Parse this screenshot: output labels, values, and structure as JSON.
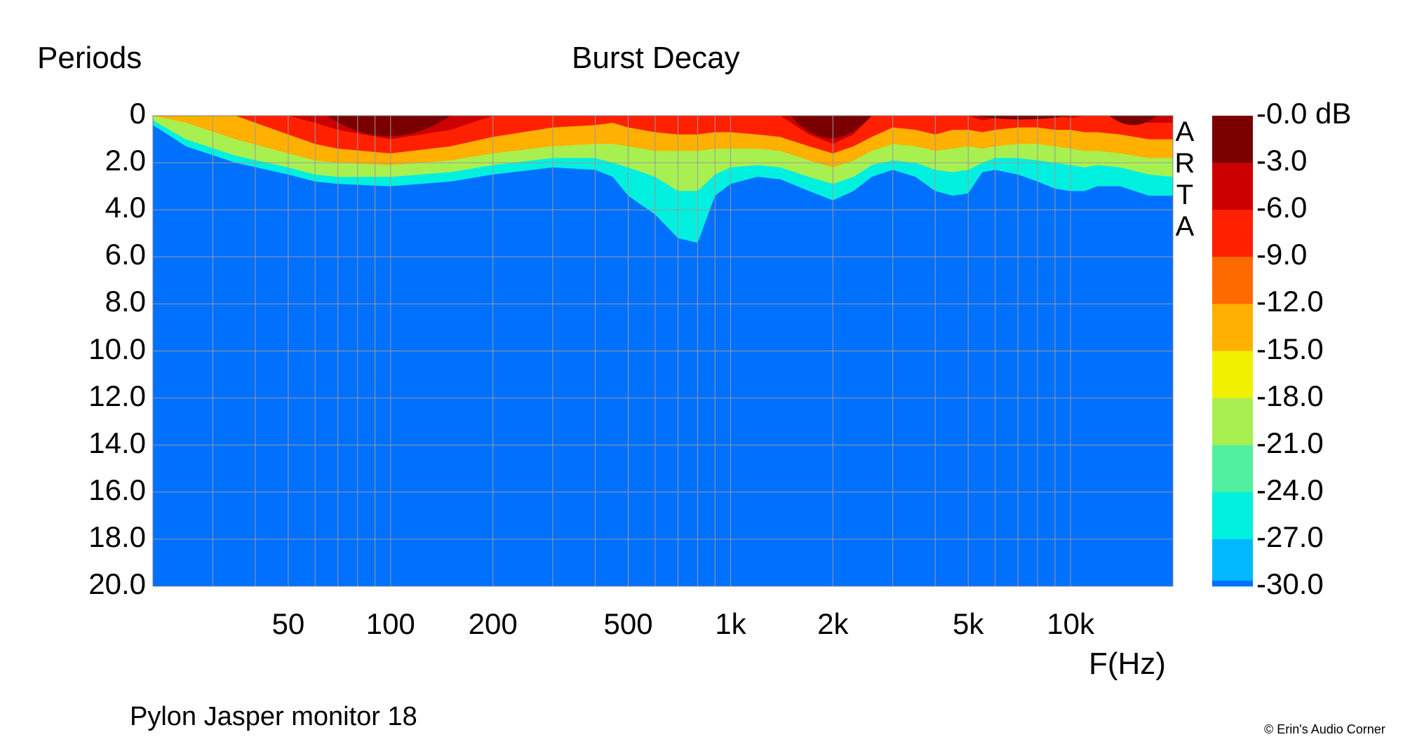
{
  "chart_data": {
    "type": "heatmap",
    "title": "Burst Decay",
    "ylabel": "Periods",
    "xlabel": "F(Hz)",
    "footer": "Pylon Jasper monitor 18",
    "copyright": "© Erin's Audio Corner",
    "brand_letters": [
      "A",
      "R",
      "T",
      "A"
    ],
    "x_scale": "log",
    "xlim": [
      20,
      20000
    ],
    "ylim": [
      0,
      20
    ],
    "y_direction": "down",
    "grid": true,
    "x_ticks": [
      {
        "value": 50,
        "label": "50"
      },
      {
        "value": 100,
        "label": "100"
      },
      {
        "value": 200,
        "label": "200"
      },
      {
        "value": 500,
        "label": "500"
      },
      {
        "value": 1000,
        "label": "1k"
      },
      {
        "value": 2000,
        "label": "2k"
      },
      {
        "value": 5000,
        "label": "5k"
      },
      {
        "value": 10000,
        "label": "10k"
      }
    ],
    "y_ticks": [
      {
        "value": 0,
        "label": "0"
      },
      {
        "value": 2,
        "label": "2.0"
      },
      {
        "value": 4,
        "label": "4.0"
      },
      {
        "value": 6,
        "label": "6.0"
      },
      {
        "value": 8,
        "label": "8.0"
      },
      {
        "value": 10,
        "label": "10.0"
      },
      {
        "value": 12,
        "label": "12.0"
      },
      {
        "value": 14,
        "label": "14.0"
      },
      {
        "value": 16,
        "label": "16.0"
      },
      {
        "value": 18,
        "label": "18.0"
      },
      {
        "value": 20,
        "label": "20.0"
      }
    ],
    "colorbar": {
      "labels": [
        "-0.0 dB",
        "-3.0",
        "-6.0",
        "-9.0",
        "-12.0",
        "-15.0",
        "-18.0",
        "-21.0",
        "-24.0",
        "-27.0",
        "-30.0"
      ],
      "colors": [
        "#7a0000",
        "#cc0000",
        "#ff2000",
        "#ff6a00",
        "#ffb000",
        "#f0f000",
        "#a8f050",
        "#50f0a0",
        "#00f0e0",
        "#00b8ff",
        "#0070ff"
      ],
      "floor_color": "#0070ff"
    },
    "contours": [
      {
        "level_db": -3,
        "freq": [
          20,
          25,
          35,
          50,
          60,
          70,
          100,
          150,
          200,
          300,
          400,
          450,
          500,
          600,
          700,
          800,
          900,
          1000,
          1200,
          1400,
          1700,
          2000,
          2300,
          2600,
          3000,
          3500,
          4000,
          4500,
          5000,
          5500,
          6000,
          7000,
          8000,
          9000,
          10000,
          11000,
          12000,
          14000,
          17000,
          20000
        ],
        "periods": [
          0,
          0,
          0,
          0,
          0.3,
          0.6,
          1,
          0.6,
          0,
          0,
          0,
          0,
          0,
          0,
          0,
          0,
          0,
          0,
          0,
          0,
          0.8,
          1.2,
          0.8,
          0,
          0,
          0,
          0,
          0,
          0,
          0.2,
          0.1,
          0,
          0,
          0,
          0.1,
          0,
          0,
          0,
          0.3,
          0.3
        ]
      },
      {
        "level_db": -6,
        "freq": [
          20,
          25,
          35,
          50,
          60,
          70,
          100,
          150,
          200,
          300,
          400,
          450,
          500,
          600,
          700,
          800,
          900,
          1000,
          1200,
          1400,
          1700,
          2000,
          2300,
          2600,
          3000,
          3500,
          4000,
          4500,
          5000,
          5500,
          6000,
          7000,
          8000,
          9000,
          10000,
          11000,
          12000,
          14000,
          17000,
          20000
        ],
        "periods": [
          0,
          0,
          0,
          0.8,
          1.2,
          1.4,
          1.6,
          1.3,
          0.9,
          0.5,
          0.4,
          0.3,
          0.5,
          0.7,
          0.8,
          0.8,
          0.7,
          0.7,
          0.8,
          0.9,
          1.3,
          1.6,
          1.3,
          0.9,
          0.5,
          0.6,
          0.8,
          0.6,
          0.6,
          0.7,
          0.6,
          0.5,
          0.5,
          0.6,
          0.6,
          0.7,
          0.7,
          0.8,
          1,
          1
        ]
      },
      {
        "level_db": -12,
        "freq": [
          20,
          25,
          35,
          50,
          60,
          70,
          100,
          150,
          200,
          300,
          400,
          450,
          500,
          600,
          700,
          800,
          900,
          1000,
          1200,
          1400,
          1700,
          2000,
          2300,
          2600,
          3000,
          3500,
          4000,
          4500,
          5000,
          5500,
          6000,
          7000,
          8000,
          9000,
          10000,
          11000,
          12000,
          14000,
          17000,
          20000
        ],
        "periods": [
          0,
          0.3,
          1,
          1.6,
          1.9,
          2,
          2.1,
          1.9,
          1.6,
          1.3,
          1.2,
          1.2,
          1.3,
          1.5,
          1.5,
          1.5,
          1.4,
          1.4,
          1.4,
          1.5,
          1.9,
          2.2,
          1.9,
          1.5,
          1.2,
          1.3,
          1.5,
          1.4,
          1.3,
          1.4,
          1.3,
          1.2,
          1.2,
          1.3,
          1.4,
          1.5,
          1.5,
          1.6,
          1.8,
          1.8
        ]
      },
      {
        "level_db": -18,
        "freq": [
          20,
          25,
          35,
          50,
          60,
          70,
          100,
          150,
          200,
          300,
          400,
          450,
          500,
          600,
          700,
          800,
          900,
          1000,
          1200,
          1400,
          1700,
          2000,
          2300,
          2600,
          3000,
          3500,
          4000,
          4500,
          5000,
          5500,
          6000,
          7000,
          8000,
          9000,
          10000,
          11000,
          12000,
          14000,
          17000,
          20000
        ],
        "periods": [
          0.2,
          1,
          1.7,
          2.2,
          2.5,
          2.6,
          2.6,
          2.4,
          2.1,
          1.8,
          1.8,
          2,
          2.2,
          2.6,
          3.2,
          3.2,
          2.5,
          2.2,
          2.1,
          2.2,
          2.6,
          2.9,
          2.6,
          2.1,
          1.9,
          2,
          2.3,
          2.4,
          2.3,
          2,
          1.8,
          1.8,
          1.9,
          2,
          2.1,
          2.2,
          2.1,
          2.2,
          2.5,
          2.6
        ]
      },
      {
        "level_db": -24,
        "freq": [
          20,
          25,
          35,
          50,
          60,
          70,
          100,
          150,
          200,
          300,
          400,
          450,
          500,
          600,
          700,
          800,
          900,
          1000,
          1200,
          1400,
          1700,
          2000,
          2300,
          2600,
          3000,
          3500,
          4000,
          4500,
          5000,
          5500,
          6000,
          7000,
          8000,
          9000,
          10000,
          11000,
          12000,
          14000,
          17000,
          20000
        ],
        "periods": [
          0.4,
          1.3,
          2,
          2.5,
          2.8,
          2.9,
          3,
          2.8,
          2.5,
          2.2,
          2.3,
          2.6,
          3.4,
          4.2,
          5.2,
          5.4,
          3.4,
          2.9,
          2.6,
          2.7,
          3.2,
          3.6,
          3.2,
          2.6,
          2.3,
          2.6,
          3.2,
          3.4,
          3.3,
          2.4,
          2.3,
          2.5,
          2.8,
          3.1,
          3.2,
          3.2,
          3,
          3,
          3.4,
          3.4
        ]
      },
      {
        "level_db": -30,
        "freq": [
          20,
          25,
          35,
          50,
          60,
          70,
          100,
          150,
          200,
          300,
          400,
          450,
          500,
          600,
          700,
          800,
          900,
          1000,
          1200,
          1400,
          1700,
          2000,
          2300,
          2600,
          3000,
          3500,
          4000,
          4500,
          5000,
          5500,
          6000,
          7000,
          8000,
          9000,
          10000,
          11000,
          12000,
          14000,
          17000,
          20000
        ],
        "periods": [
          0.5,
          1.5,
          2.2,
          2.7,
          3,
          3.1,
          3.2,
          3,
          2.7,
          2.4,
          2.5,
          2.8,
          3.6,
          4.6,
          5.8,
          5.7,
          3.6,
          3.1,
          2.8,
          2.9,
          3.4,
          4.3,
          3.6,
          2.8,
          2.5,
          2.8,
          3.5,
          3.6,
          3.5,
          2.6,
          2.5,
          2.7,
          3,
          3.3,
          3.4,
          3.4,
          3.2,
          3.2,
          3.6,
          3.6
        ]
      }
    ],
    "peaks": [
      {
        "level_db": -3,
        "freq_range": [
          65,
          150
        ],
        "periods_max": 1.1
      },
      {
        "level_db": -3,
        "freq_range": [
          1500,
          2600
        ],
        "periods_max": 1.2
      },
      {
        "level_db": -3,
        "freq_range": [
          5200,
          10000
        ],
        "periods_max": 0.2
      },
      {
        "level_db": -3,
        "freq_range": [
          13000,
          18000
        ],
        "periods_max": 0.5
      }
    ]
  }
}
